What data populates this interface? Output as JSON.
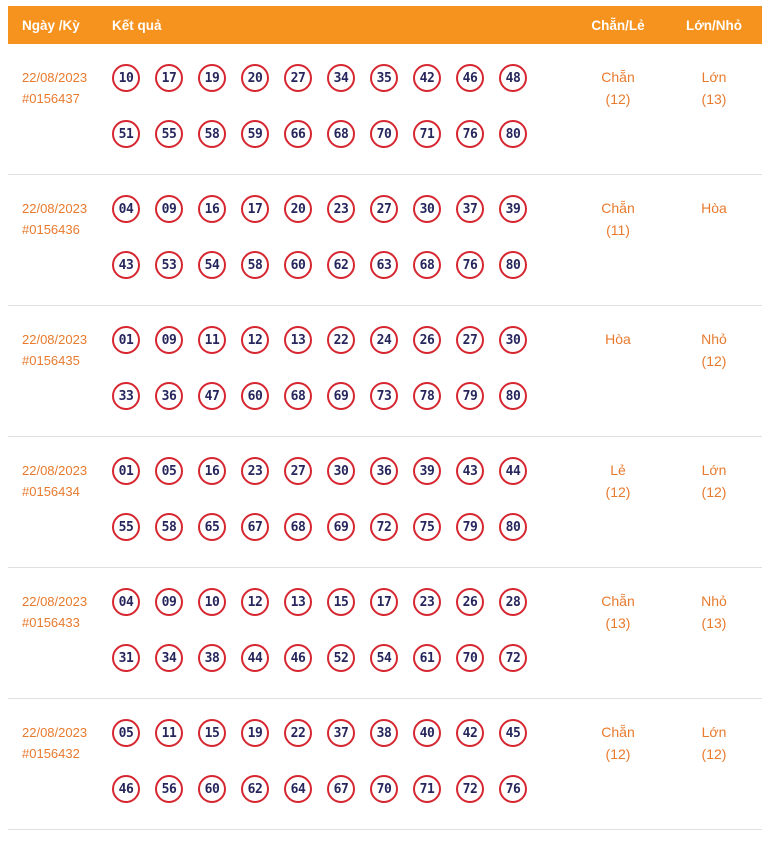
{
  "header": {
    "col_date": "Ngày /Kỳ",
    "col_result": "Kết quả",
    "col_even_odd": "Chẵn/Lẻ",
    "col_big_small": "Lớn/Nhỏ"
  },
  "colors": {
    "header_bg": "#F6921E",
    "accent_orange": "#E87A2E",
    "ball_border": "#D62731",
    "ball_text": "#26265C",
    "separator": "#E0E0E0"
  },
  "draws": [
    {
      "date": "22/08/2023",
      "id": "#0156437",
      "line1": [
        "10",
        "17",
        "19",
        "20",
        "27",
        "34",
        "35",
        "42",
        "46",
        "48"
      ],
      "line2": [
        "51",
        "55",
        "58",
        "59",
        "66",
        "68",
        "70",
        "71",
        "76",
        "80"
      ],
      "even_odd": {
        "label": "Chẵn",
        "count": "(12)"
      },
      "big_small": {
        "label": "Lớn",
        "count": "(13)"
      }
    },
    {
      "date": "22/08/2023",
      "id": "#0156436",
      "line1": [
        "04",
        "09",
        "16",
        "17",
        "20",
        "23",
        "27",
        "30",
        "37",
        "39"
      ],
      "line2": [
        "43",
        "53",
        "54",
        "58",
        "60",
        "62",
        "63",
        "68",
        "76",
        "80"
      ],
      "even_odd": {
        "label": "Chẵn",
        "count": "(11)"
      },
      "big_small": {
        "label": "Hòa",
        "count": ""
      }
    },
    {
      "date": "22/08/2023",
      "id": "#0156435",
      "line1": [
        "01",
        "09",
        "11",
        "12",
        "13",
        "22",
        "24",
        "26",
        "27",
        "30"
      ],
      "line2": [
        "33",
        "36",
        "47",
        "60",
        "68",
        "69",
        "73",
        "78",
        "79",
        "80"
      ],
      "even_odd": {
        "label": "Hòa",
        "count": ""
      },
      "big_small": {
        "label": "Nhỏ",
        "count": "(12)"
      }
    },
    {
      "date": "22/08/2023",
      "id": "#0156434",
      "line1": [
        "01",
        "05",
        "16",
        "23",
        "27",
        "30",
        "36",
        "39",
        "43",
        "44"
      ],
      "line2": [
        "55",
        "58",
        "65",
        "67",
        "68",
        "69",
        "72",
        "75",
        "79",
        "80"
      ],
      "even_odd": {
        "label": "Lẻ",
        "count": "(12)"
      },
      "big_small": {
        "label": "Lớn",
        "count": "(12)"
      }
    },
    {
      "date": "22/08/2023",
      "id": "#0156433",
      "line1": [
        "04",
        "09",
        "10",
        "12",
        "13",
        "15",
        "17",
        "23",
        "26",
        "28"
      ],
      "line2": [
        "31",
        "34",
        "38",
        "44",
        "46",
        "52",
        "54",
        "61",
        "70",
        "72"
      ],
      "even_odd": {
        "label": "Chẵn",
        "count": "(13)"
      },
      "big_small": {
        "label": "Nhỏ",
        "count": "(13)"
      }
    },
    {
      "date": "22/08/2023",
      "id": "#0156432",
      "line1": [
        "05",
        "11",
        "15",
        "19",
        "22",
        "37",
        "38",
        "40",
        "42",
        "45"
      ],
      "line2": [
        "46",
        "56",
        "60",
        "62",
        "64",
        "67",
        "70",
        "71",
        "72",
        "76"
      ],
      "even_odd": {
        "label": "Chẵn",
        "count": "(12)"
      },
      "big_small": {
        "label": "Lớn",
        "count": "(12)"
      }
    }
  ]
}
